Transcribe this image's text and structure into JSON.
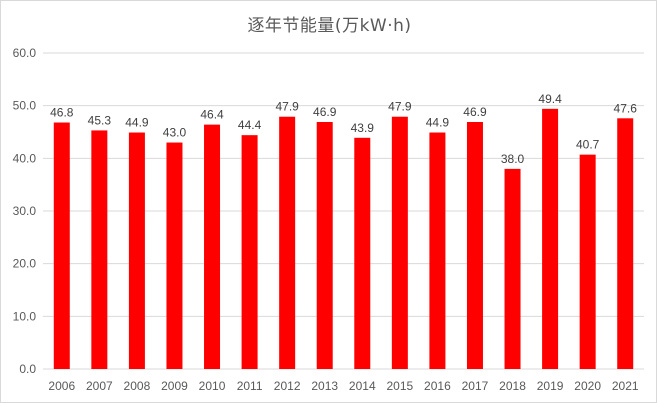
{
  "chart_data": {
    "type": "bar",
    "title": "逐年节能量(万kW·h)",
    "xlabel": "",
    "ylabel": "",
    "categories": [
      "2006",
      "2007",
      "2008",
      "2009",
      "2010",
      "2011",
      "2012",
      "2013",
      "2014",
      "2015",
      "2016",
      "2017",
      "2018",
      "2019",
      "2020",
      "2021"
    ],
    "series": [
      {
        "values": [
          46.8,
          45.3,
          44.9,
          43.0,
          46.4,
          44.4,
          47.9,
          46.9,
          43.9,
          47.9,
          44.9,
          46.9,
          38.0,
          49.4,
          40.7,
          47.6
        ],
        "color": "#ff0000"
      }
    ],
    "ylim": [
      0,
      60
    ],
    "yticks": [
      "0.0",
      "10.0",
      "20.0",
      "30.0",
      "40.0",
      "50.0",
      "60.0"
    ],
    "data_labels": true,
    "grid": "horizontal",
    "legend": "none",
    "colors": {
      "bar": "#ff0000",
      "grid": "#d9d9d9",
      "text": "#595959"
    }
  }
}
